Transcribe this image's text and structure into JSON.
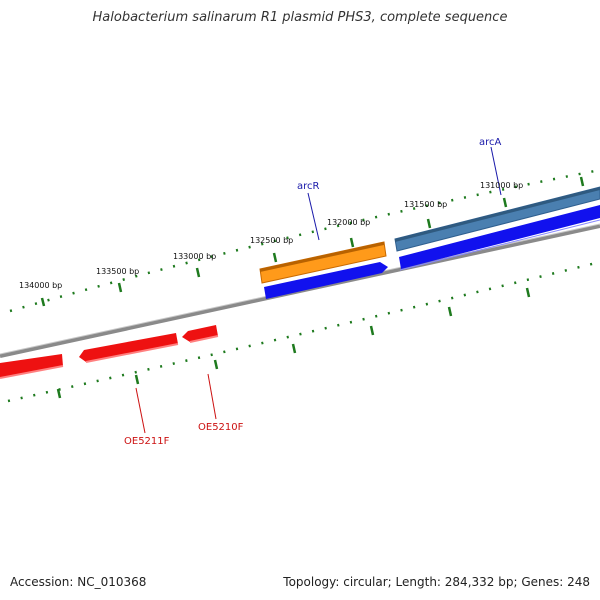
{
  "title": "Halobacterium salinarum R1 plasmid PHS3, complete sequence",
  "footer": {
    "accession": "Accession: NC_010368",
    "summary": "Topology: circular; Length: 284,332 bp; Genes: 248"
  },
  "scale_labels": [
    "134000 bp",
    "133500 bp",
    "133000 bp",
    "132500 bp",
    "132000 bp",
    "131500 bp",
    "131000 bp"
  ],
  "gene_labels": {
    "arcR": "arcR",
    "arcA": "arcA",
    "oe5211f": "OE5211F",
    "oe5210f": "OE5210F"
  },
  "colors": {
    "backbone": "#8a8a8a",
    "ticks": "#1e7a1e",
    "forward_feature_orange": "#ff9a1a",
    "forward_feature_steelblue": "#4a7fb0",
    "cds_blue": "#1111ee",
    "reverse_cds_red": "#ee1111",
    "label_blue": "#1a1aaa",
    "label_red": "#cc1111"
  }
}
